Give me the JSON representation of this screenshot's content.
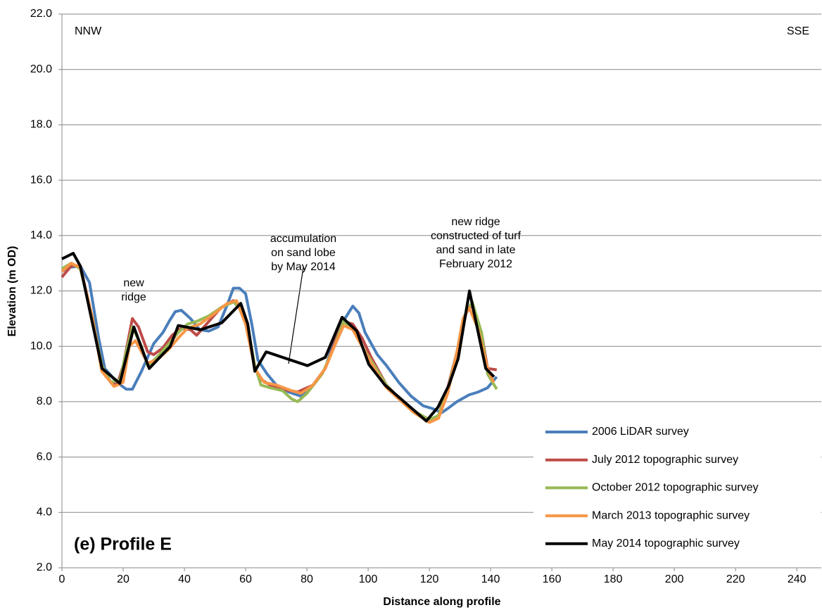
{
  "chart_data": {
    "type": "line",
    "title": "(e) Profile E",
    "x_label": "Distance along profile",
    "y_label": "Elevation (m OD)",
    "xlim": [
      0,
      248
    ],
    "ylim": [
      2,
      22
    ],
    "xticks": [
      0,
      20,
      40,
      60,
      80,
      100,
      120,
      140,
      160,
      180,
      200,
      220,
      240
    ],
    "yticks": [
      {
        "value": 2,
        "label": "2.0"
      },
      {
        "value": 4,
        "label": "4.0"
      },
      {
        "value": 6,
        "label": "6.0"
      },
      {
        "value": 8,
        "label": "8.0"
      },
      {
        "value": 10,
        "label": "10.0"
      },
      {
        "value": 12,
        "label": "12.0"
      },
      {
        "value": 14,
        "label": "14.0"
      },
      {
        "value": 16,
        "label": "16.0"
      },
      {
        "value": 18,
        "label": "18.0"
      },
      {
        "value": 20,
        "label": "20.0"
      },
      {
        "value": 22,
        "label": "22.0"
      }
    ],
    "grid": true,
    "legend": "lower right",
    "annotations": [
      {
        "lines": [
          "NNW"
        ]
      },
      {
        "lines": [
          "SSE"
        ]
      },
      {
        "lines": [
          "new",
          "ridge"
        ]
      },
      {
        "lines": [
          "accumulation",
          "on sand lobe",
          "by May 2014"
        ]
      },
      {
        "lines": [
          "new ridge",
          "constructed of turf",
          "and sand in late",
          "February 2012"
        ]
      }
    ],
    "series": [
      {
        "name": "2006 LiDAR survey",
        "color": "#4a7ebb",
        "x": [
          0,
          2,
          6,
          9,
          12,
          14,
          18,
          21,
          23,
          26,
          30,
          33,
          35,
          37,
          39,
          42,
          45,
          48,
          51,
          54,
          56,
          58,
          60,
          62,
          64,
          67,
          70,
          74,
          78,
          82,
          86,
          90,
          93,
          95,
          97,
          99,
          103,
          106,
          110,
          114,
          118,
          121,
          124,
          126,
          129,
          133,
          136,
          139,
          142
        ],
        "values": [
          12.7,
          12.85,
          12.9,
          12.3,
          10.3,
          9.2,
          8.7,
          8.45,
          8.45,
          9.1,
          10.1,
          10.5,
          10.9,
          11.25,
          11.3,
          11.0,
          10.6,
          10.55,
          10.7,
          11.5,
          12.1,
          12.1,
          11.9,
          10.8,
          9.5,
          9.0,
          8.6,
          8.35,
          8.2,
          8.6,
          9.2,
          10.6,
          11.1,
          11.45,
          11.2,
          10.5,
          9.7,
          9.3,
          8.7,
          8.2,
          7.85,
          7.75,
          7.6,
          7.75,
          8.0,
          8.25,
          8.35,
          8.5,
          8.9
        ]
      },
      {
        "name": "July 2012 topographic survey",
        "color": "#be4b48",
        "x": [
          0,
          3,
          6,
          10,
          13,
          16,
          18,
          20,
          23,
          25,
          28,
          30,
          33,
          36,
          39,
          42,
          44,
          48,
          52,
          56,
          58,
          61,
          63,
          65,
          68,
          72,
          77,
          82,
          86,
          90,
          92,
          95,
          98,
          101,
          106,
          112,
          117,
          120,
          123,
          126,
          129,
          132,
          134,
          137,
          139,
          142
        ],
        "values": [
          12.5,
          12.9,
          12.9,
          11.0,
          9.3,
          8.7,
          8.6,
          9.3,
          11.0,
          10.7,
          9.8,
          9.7,
          9.95,
          10.4,
          10.65,
          10.6,
          10.4,
          10.9,
          11.4,
          11.65,
          11.5,
          10.5,
          9.2,
          8.8,
          8.6,
          8.45,
          8.35,
          8.6,
          9.2,
          10.4,
          10.9,
          10.8,
          10.3,
          9.6,
          8.6,
          7.9,
          7.5,
          7.3,
          7.5,
          8.5,
          9.8,
          11.2,
          11.5,
          10.5,
          9.2,
          9.15
        ]
      },
      {
        "name": "October 2012 topographic survey",
        "color": "#98b954",
        "x": [
          0,
          3,
          6,
          10,
          13,
          16,
          19,
          21,
          23,
          26,
          28,
          31,
          35,
          38,
          41,
          44,
          48,
          52,
          56,
          58,
          61,
          63,
          65,
          68,
          72,
          75,
          77,
          80,
          85,
          89,
          92,
          95,
          98,
          102,
          106,
          111,
          116,
          120,
          123,
          126,
          129,
          131,
          134,
          137,
          139,
          142
        ],
        "values": [
          12.8,
          13.0,
          12.8,
          11.0,
          9.3,
          8.7,
          8.8,
          9.8,
          10.7,
          10.0,
          9.3,
          9.6,
          10.1,
          10.5,
          10.8,
          10.9,
          11.1,
          11.4,
          11.6,
          11.4,
          10.5,
          9.3,
          8.6,
          8.5,
          8.4,
          8.1,
          8.0,
          8.3,
          9.0,
          10.0,
          10.9,
          10.6,
          10.0,
          9.3,
          8.6,
          8.0,
          7.6,
          7.35,
          7.5,
          8.4,
          9.8,
          11.0,
          11.6,
          10.5,
          9.0,
          8.45
        ]
      },
      {
        "name": "March 2013 topographic survey",
        "color": "#f79646",
        "x": [
          0,
          3,
          6,
          10,
          13,
          17,
          20,
          22,
          24,
          28,
          31,
          35,
          38,
          41,
          45,
          50,
          54,
          57,
          60,
          63,
          66,
          70,
          75,
          78,
          82,
          86,
          89,
          92,
          95,
          98,
          102,
          106,
          110,
          115,
          120,
          123,
          126,
          129,
          131,
          133,
          136,
          139,
          141
        ],
        "values": [
          12.7,
          13.0,
          12.85,
          11.0,
          9.1,
          8.55,
          8.7,
          10.0,
          10.2,
          9.4,
          9.5,
          9.9,
          10.3,
          10.65,
          10.8,
          11.2,
          11.55,
          11.65,
          10.8,
          9.2,
          8.7,
          8.6,
          8.4,
          8.3,
          8.6,
          9.2,
          10.0,
          10.75,
          10.6,
          10.0,
          9.2,
          8.5,
          8.1,
          7.6,
          7.25,
          7.4,
          8.3,
          9.8,
          11.0,
          11.4,
          10.6,
          9.2,
          8.7
        ]
      },
      {
        "name": "May 2014 topographic survey",
        "color": "#000000",
        "x": [
          0,
          3.7,
          6,
          13.1,
          18.9,
          23.5,
          28.5,
          35.4,
          38,
          45.3,
          52.2,
          58.4,
          60.7,
          63,
          66.7,
          80.2,
          86,
          91.5,
          96.3,
          100.2,
          105.5,
          119,
          122.8,
          126.4,
          129.4,
          133.1,
          138.4,
          141.1
        ],
        "values": [
          13.16,
          13.36,
          12.9,
          9.2,
          8.66,
          10.7,
          9.2,
          10.0,
          10.75,
          10.6,
          10.85,
          11.55,
          10.8,
          9.1,
          9.8,
          9.3,
          9.6,
          11.05,
          10.55,
          9.35,
          8.6,
          7.3,
          7.8,
          8.6,
          9.55,
          12.0,
          9.2,
          8.9
        ]
      }
    ]
  }
}
